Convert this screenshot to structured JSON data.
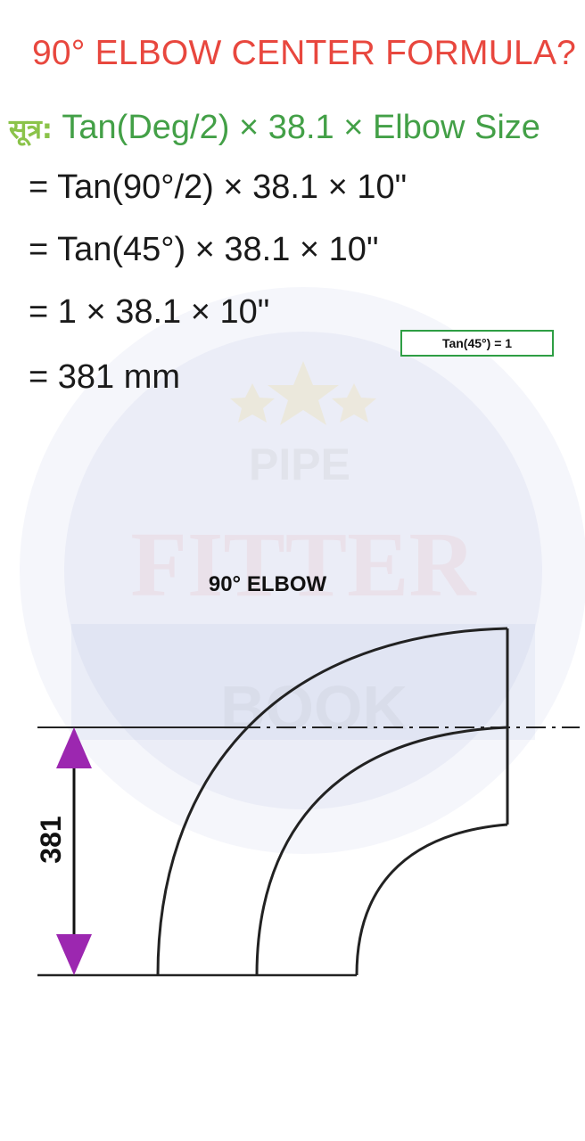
{
  "heading": "90° ELBOW CENTER FORMULA?",
  "formula": {
    "label": "सूत्र:",
    "expression": "Tan(Deg/2) × 38.1 × Elbow Size"
  },
  "steps": [
    "= Tan(90°/2) × 38.1 × 10\"",
    "= Tan(45°) × 38.1 × 10\"",
    "= 1 × 38.1 × 10\"",
    "= 381 mm"
  ],
  "note": "Tan(45°) = 1",
  "diagram": {
    "title": "90° ELBOW",
    "dimension_label": "381"
  },
  "watermark": {
    "top": "PIPE",
    "middle": "FITTER",
    "bottom": "BOOK"
  },
  "colors": {
    "heading": "#e8473e",
    "formula": "#43a047",
    "dimension_arrow": "#9c27b0",
    "note_border": "#2e9e44"
  }
}
